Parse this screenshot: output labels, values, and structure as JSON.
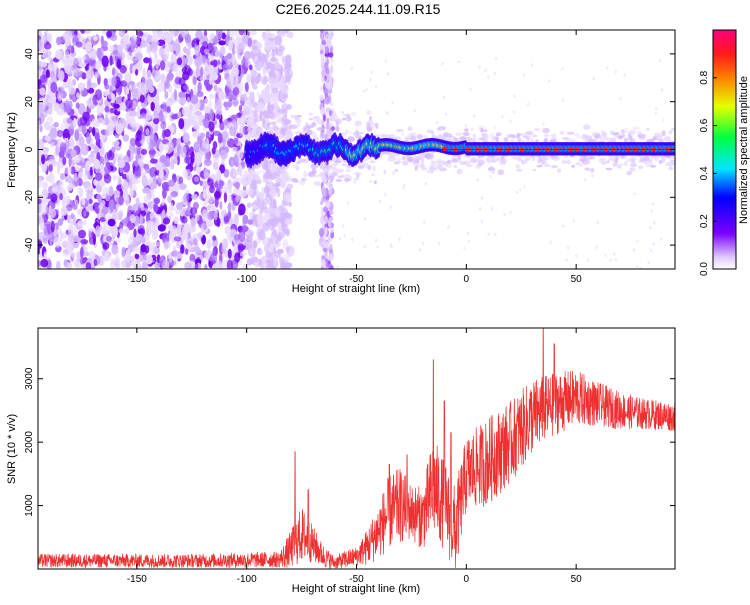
{
  "title": "C2E6.2025.244.11.09.R15",
  "chart_data": [
    {
      "type": "heatmap",
      "title": "C2E6.2025.244.11.09.R15",
      "xlabel": "Height of straight line (km)",
      "ylabel": "Frequency (Hz)",
      "xlim": [
        -195,
        95
      ],
      "ylim": [
        -50,
        50
      ],
      "x_ticks": [
        -150,
        -100,
        -50,
        0,
        50
      ],
      "y_ticks": [
        -40,
        -20,
        0,
        20,
        40
      ],
      "colorbar": {
        "label": "Normalized spectral amplitude",
        "range": [
          0,
          1
        ],
        "ticks": [
          0.0,
          0.2,
          0.4,
          0.6,
          0.8
        ]
      },
      "features": {
        "noise_region_x": [
          -195,
          -88
        ],
        "noise_stripe_x": [
          -66,
          -61
        ],
        "signal_band_freq": 0,
        "signal_onset_x": -100
      }
    },
    {
      "type": "line",
      "xlabel": "Height of straight line (km)",
      "ylabel": "SNR (10 * v/v)",
      "xlim": [
        -195,
        95
      ],
      "ylim": [
        0,
        3800
      ],
      "x_ticks": [
        -150,
        -100,
        -50,
        0,
        50
      ],
      "y_ticks": [
        1000,
        2000,
        3000
      ],
      "color": "#ee3030",
      "envelope": {
        "x": [
          -195,
          -120,
          -85,
          -80,
          -75,
          -70,
          -65,
          -60,
          -55,
          -50,
          -45,
          -40,
          -35,
          -30,
          -25,
          -20,
          -15,
          -10,
          -5,
          0,
          10,
          20,
          30,
          40,
          50,
          60,
          70,
          80,
          95
        ],
        "base": [
          130,
          130,
          150,
          300,
          550,
          400,
          200,
          100,
          150,
          200,
          350,
          600,
          900,
          1000,
          900,
          800,
          1300,
          1000,
          600,
          1500,
          1700,
          2000,
          2400,
          2600,
          2700,
          2600,
          2500,
          2450,
          2400
        ],
        "amp": [
          110,
          110,
          130,
          300,
          450,
          300,
          180,
          100,
          150,
          150,
          300,
          450,
          600,
          600,
          450,
          500,
          800,
          700,
          700,
          600,
          700,
          650,
          600,
          500,
          450,
          350,
          300,
          250,
          230
        ]
      },
      "spikes": [
        {
          "x": -78,
          "y": 1850
        },
        {
          "x": -72,
          "y": 1250
        },
        {
          "x": -35,
          "y": 1650
        },
        {
          "x": -27,
          "y": 1800
        },
        {
          "x": -15,
          "y": 3300
        },
        {
          "x": -10,
          "y": 2650
        },
        {
          "x": -7,
          "y": 2150
        },
        {
          "x": 35,
          "y": 3800
        },
        {
          "x": 40,
          "y": 3550
        }
      ]
    }
  ]
}
